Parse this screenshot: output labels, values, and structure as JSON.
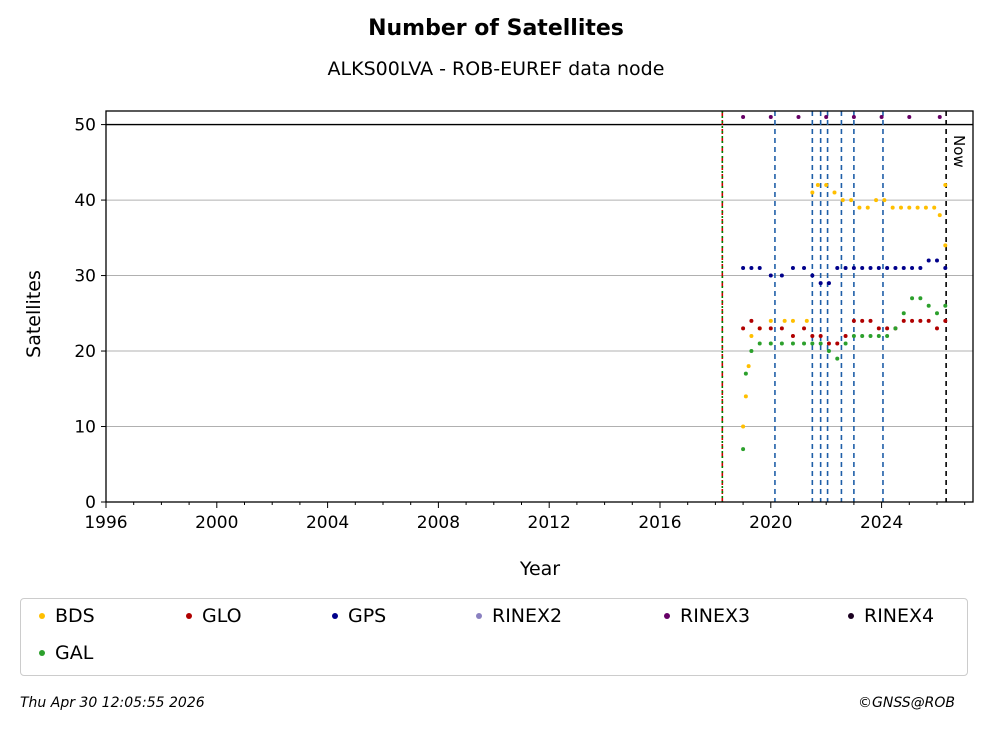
{
  "chart_data": {
    "type": "scatter",
    "title": "Number of Satellites",
    "subtitle": "ALKS00LVA - ROB-EUREF data node",
    "xlabel": "Year",
    "ylabel": "Satellites",
    "xlim": [
      1996,
      2027.3
    ],
    "ylim": [
      0,
      51.8
    ],
    "xticks": [
      1996,
      2000,
      2004,
      2008,
      2012,
      2016,
      2020,
      2024
    ],
    "yticks": [
      0,
      10,
      20,
      30,
      40,
      50
    ],
    "grid": "horizontal",
    "legend_placement": "below",
    "series": [
      {
        "name": "BDS",
        "color": "#FFBF00",
        "x": [
          2019.0,
          2019.1,
          2019.2,
          2019.3,
          2019.6,
          2020.0,
          2020.5,
          2020.8,
          2021.3,
          2021.5,
          2021.7,
          2022.0,
          2022.3,
          2022.6,
          2022.9,
          2023.2,
          2023.5,
          2023.8,
          2024.1,
          2024.4,
          2024.7,
          2025.0,
          2025.3,
          2025.6,
          2025.9,
          2026.1,
          2026.3,
          2026.3
        ],
        "y": [
          10,
          14,
          18,
          22,
          23,
          24,
          24,
          24,
          24,
          41,
          42,
          42,
          41,
          40,
          40,
          39,
          39,
          40,
          40,
          39,
          39,
          39,
          39,
          39,
          39,
          38,
          42,
          34
        ]
      },
      {
        "name": "GLO",
        "color": "#B00000",
        "x": [
          2019.0,
          2019.3,
          2019.6,
          2020.0,
          2020.4,
          2020.8,
          2021.2,
          2021.5,
          2021.8,
          2022.1,
          2022.4,
          2022.7,
          2023.0,
          2023.3,
          2023.6,
          2023.9,
          2024.2,
          2024.5,
          2024.8,
          2025.1,
          2025.4,
          2025.7,
          2026.0,
          2026.3
        ],
        "y": [
          23,
          24,
          23,
          23,
          23,
          22,
          23,
          22,
          22,
          21,
          21,
          22,
          24,
          24,
          24,
          23,
          23,
          23,
          24,
          24,
          24,
          24,
          23,
          24
        ]
      },
      {
        "name": "GPS",
        "color": "#00008B",
        "x": [
          2019.0,
          2019.3,
          2019.6,
          2020.0,
          2020.4,
          2020.8,
          2021.2,
          2021.5,
          2021.8,
          2022.1,
          2022.4,
          2022.7,
          2023.0,
          2023.3,
          2023.6,
          2023.9,
          2024.2,
          2024.5,
          2024.8,
          2025.1,
          2025.4,
          2025.7,
          2026.0,
          2026.3
        ],
        "y": [
          31,
          31,
          31,
          30,
          30,
          31,
          31,
          30,
          29,
          29,
          31,
          31,
          31,
          31,
          31,
          31,
          31,
          31,
          31,
          31,
          31,
          32,
          32,
          31
        ]
      },
      {
        "name": "RINEX2",
        "color": "#8A80C0",
        "x": [],
        "y": []
      },
      {
        "name": "RINEX3",
        "color": "#660066",
        "x": [
          2019.0,
          2020.0,
          2021.0,
          2022.0,
          2023.0,
          2024.0,
          2025.0,
          2026.1
        ],
        "y": [
          51,
          51,
          51,
          51,
          51,
          51,
          51,
          51
        ]
      },
      {
        "name": "RINEX4",
        "color": "#1A0020",
        "x": [],
        "y": []
      },
      {
        "name": "GAL",
        "color": "#2CA02C",
        "x": [
          2019.0,
          2019.1,
          2019.3,
          2019.6,
          2020.0,
          2020.4,
          2020.8,
          2021.2,
          2021.5,
          2021.8,
          2022.1,
          2022.4,
          2022.7,
          2023.0,
          2023.3,
          2023.6,
          2023.9,
          2024.2,
          2024.5,
          2024.8,
          2025.1,
          2025.4,
          2025.7,
          2026.0,
          2026.3
        ],
        "y": [
          7,
          17,
          20,
          21,
          21,
          21,
          21,
          21,
          21,
          21,
          20,
          19,
          21,
          22,
          22,
          22,
          22,
          22,
          23,
          25,
          27,
          27,
          26,
          25,
          26
        ]
      }
    ],
    "vertical_lines": [
      {
        "x": 2018.25,
        "color": "#CC0000",
        "style": "dashed"
      },
      {
        "x": 2018.25,
        "color": "#008000",
        "style": "dotted"
      },
      {
        "x": 2020.15,
        "color": "#1F5FA8",
        "style": "dashed"
      },
      {
        "x": 2021.5,
        "color": "#1F5FA8",
        "style": "dashed"
      },
      {
        "x": 2021.8,
        "color": "#1F5FA8",
        "style": "dashed"
      },
      {
        "x": 2022.05,
        "color": "#1F5FA8",
        "style": "dashed"
      },
      {
        "x": 2022.55,
        "color": "#1F5FA8",
        "style": "dashed"
      },
      {
        "x": 2023.0,
        "color": "#1F5FA8",
        "style": "dashed"
      },
      {
        "x": 2024.05,
        "color": "#1F5FA8",
        "style": "dashed"
      },
      {
        "x": 2026.33,
        "color": "#000000",
        "style": "dashed"
      }
    ],
    "hline": {
      "y": 50,
      "color": "#000000"
    },
    "now_label": "Now"
  },
  "footer": {
    "timestamp": "Thu Apr 30 12:05:55 2026",
    "copyright": "©GNSS@ROB"
  }
}
